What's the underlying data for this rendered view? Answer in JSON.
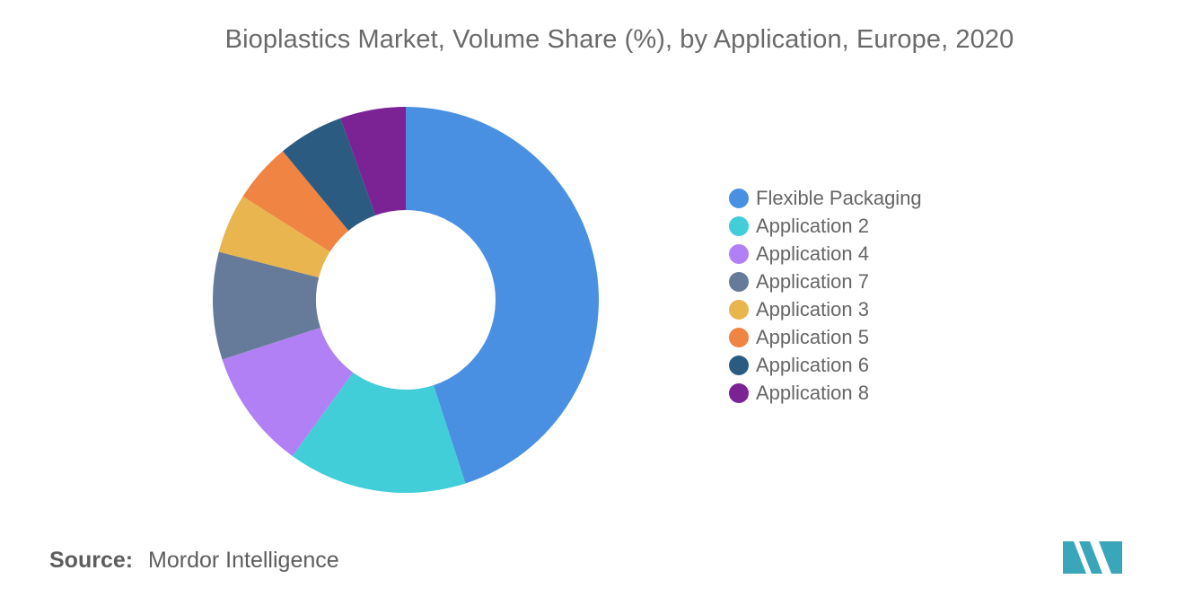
{
  "chart_data": {
    "type": "pie",
    "subtype": "donut",
    "title": "Bioplastics Market, Volume Share (%), by Application, Europe, 2020",
    "categories": [
      "Flexible Packaging",
      "Application 2",
      "Application 4",
      "Application 7",
      "Application 3",
      "Application 5",
      "Application 6",
      "Application 8"
    ],
    "values": [
      45.0,
      15.0,
      10.0,
      9.0,
      5.0,
      5.0,
      5.5,
      5.5
    ],
    "colors": [
      "#4a90e2",
      "#41ced8",
      "#b180f4",
      "#667a99",
      "#e9b54f",
      "#f08443",
      "#2c5b82",
      "#7b2394"
    ],
    "start_angle_deg": 90,
    "direction": "clockwise",
    "legend_position": "right"
  },
  "legend": {
    "items": [
      {
        "label": "Flexible Packaging",
        "color": "#4a90e2"
      },
      {
        "label": "Application 2",
        "color": "#41ced8"
      },
      {
        "label": "Application 4",
        "color": "#b180f4"
      },
      {
        "label": "Application 7",
        "color": "#667a99"
      },
      {
        "label": "Application 3",
        "color": "#e9b54f"
      },
      {
        "label": "Application 5",
        "color": "#f08443"
      },
      {
        "label": "Application 6",
        "color": "#2c5b82"
      },
      {
        "label": "Application 8",
        "color": "#7b2394"
      }
    ]
  },
  "source": {
    "label": "Source:",
    "value": "Mordor Intelligence"
  },
  "logo": {
    "icon": "mordor-intelligence-logo",
    "color": "#3aa6b9"
  }
}
